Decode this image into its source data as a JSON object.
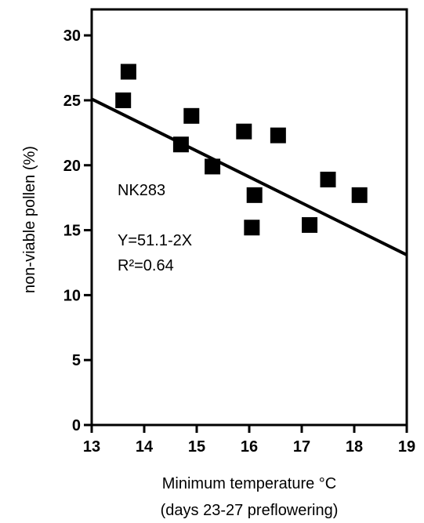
{
  "chart_data": {
    "type": "scatter",
    "title": "",
    "xlabel": "Minimum temperature °C",
    "xlabel_line2": "(days 23-27 preflowering)",
    "ylabel": "non-viable pollen (%)",
    "xlim": [
      13,
      19
    ],
    "ylim": [
      0,
      32
    ],
    "xticks": [
      13,
      14,
      15,
      16,
      17,
      18,
      19
    ],
    "yticks": [
      0,
      5,
      10,
      15,
      20,
      25,
      30
    ],
    "grid": false,
    "marker": "square",
    "points": [
      {
        "x": 13.6,
        "y": 25.0
      },
      {
        "x": 13.7,
        "y": 27.2
      },
      {
        "x": 14.7,
        "y": 21.6
      },
      {
        "x": 14.9,
        "y": 23.8
      },
      {
        "x": 15.3,
        "y": 19.9
      },
      {
        "x": 15.9,
        "y": 22.6
      },
      {
        "x": 16.05,
        "y": 15.2
      },
      {
        "x": 16.1,
        "y": 17.7
      },
      {
        "x": 16.55,
        "y": 22.3
      },
      {
        "x": 17.15,
        "y": 15.4
      },
      {
        "x": 17.5,
        "y": 18.9
      },
      {
        "x": 18.1,
        "y": 17.7
      }
    ],
    "trendline": {
      "intercept": 51.1,
      "slope": -2,
      "x_range": [
        13,
        19
      ]
    },
    "annotations": [
      "NK283",
      "Y=51.1-2X",
      "R²=0.64"
    ]
  }
}
